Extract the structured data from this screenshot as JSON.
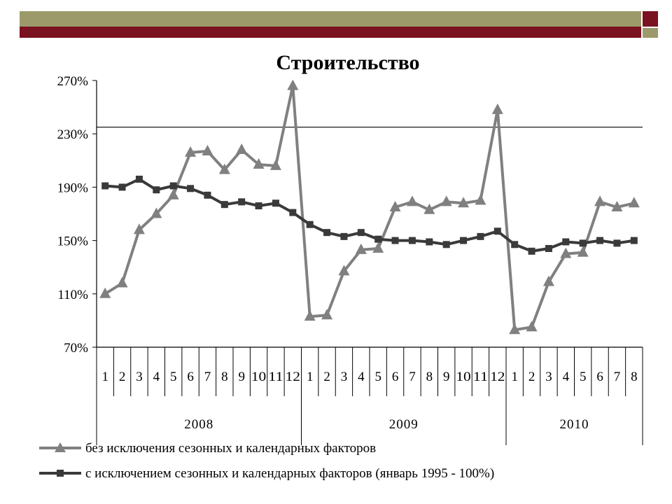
{
  "decor": {
    "olive": "#9c9a6a",
    "red": "#7a1220"
  },
  "chart_data": {
    "type": "line",
    "title": "Строительство",
    "ylim": [
      70,
      270
    ],
    "y_ticks": [
      "70%",
      "110%",
      "150%",
      "190%",
      "230%",
      "270%"
    ],
    "y_tick_values": [
      70,
      110,
      150,
      190,
      230,
      270
    ],
    "reference_line": 235,
    "month_labels": [
      "1",
      "2",
      "3",
      "4",
      "5",
      "6",
      "7",
      "8",
      "9",
      "10",
      "11",
      "12",
      "1",
      "2",
      "3",
      "4",
      "5",
      "6",
      "7",
      "8",
      "9",
      "10",
      "11",
      "12",
      "1",
      "2",
      "3",
      "4",
      "5",
      "6",
      "7",
      "8"
    ],
    "years": [
      {
        "label": "2008",
        "months": 12
      },
      {
        "label": "2009",
        "months": 12
      },
      {
        "label": "2010",
        "months": 8
      }
    ],
    "series": [
      {
        "name": "без исключения сезонных и календарных факторов",
        "color": "#808080",
        "marker": "triangle",
        "values": [
          110,
          118,
          158,
          170,
          184,
          216,
          217,
          203,
          218,
          207,
          206,
          266,
          93,
          94,
          127,
          143,
          144,
          175,
          179,
          173,
          179,
          178,
          180,
          248,
          83,
          85,
          119,
          140,
          141,
          179,
          175,
          178
        ]
      },
      {
        "name": "с исключением сезонных и календарных факторов (январь 1995 - 100%)",
        "color": "#3a3a3a",
        "marker": "square",
        "values": [
          191,
          190,
          196,
          188,
          191,
          189,
          184,
          177,
          179,
          176,
          178,
          171,
          162,
          156,
          153,
          156,
          151,
          150,
          150,
          149,
          147,
          150,
          153,
          157,
          147,
          142,
          144,
          149,
          148,
          150,
          148,
          150
        ]
      }
    ],
    "grid": false,
    "legend_position": "bottom"
  }
}
